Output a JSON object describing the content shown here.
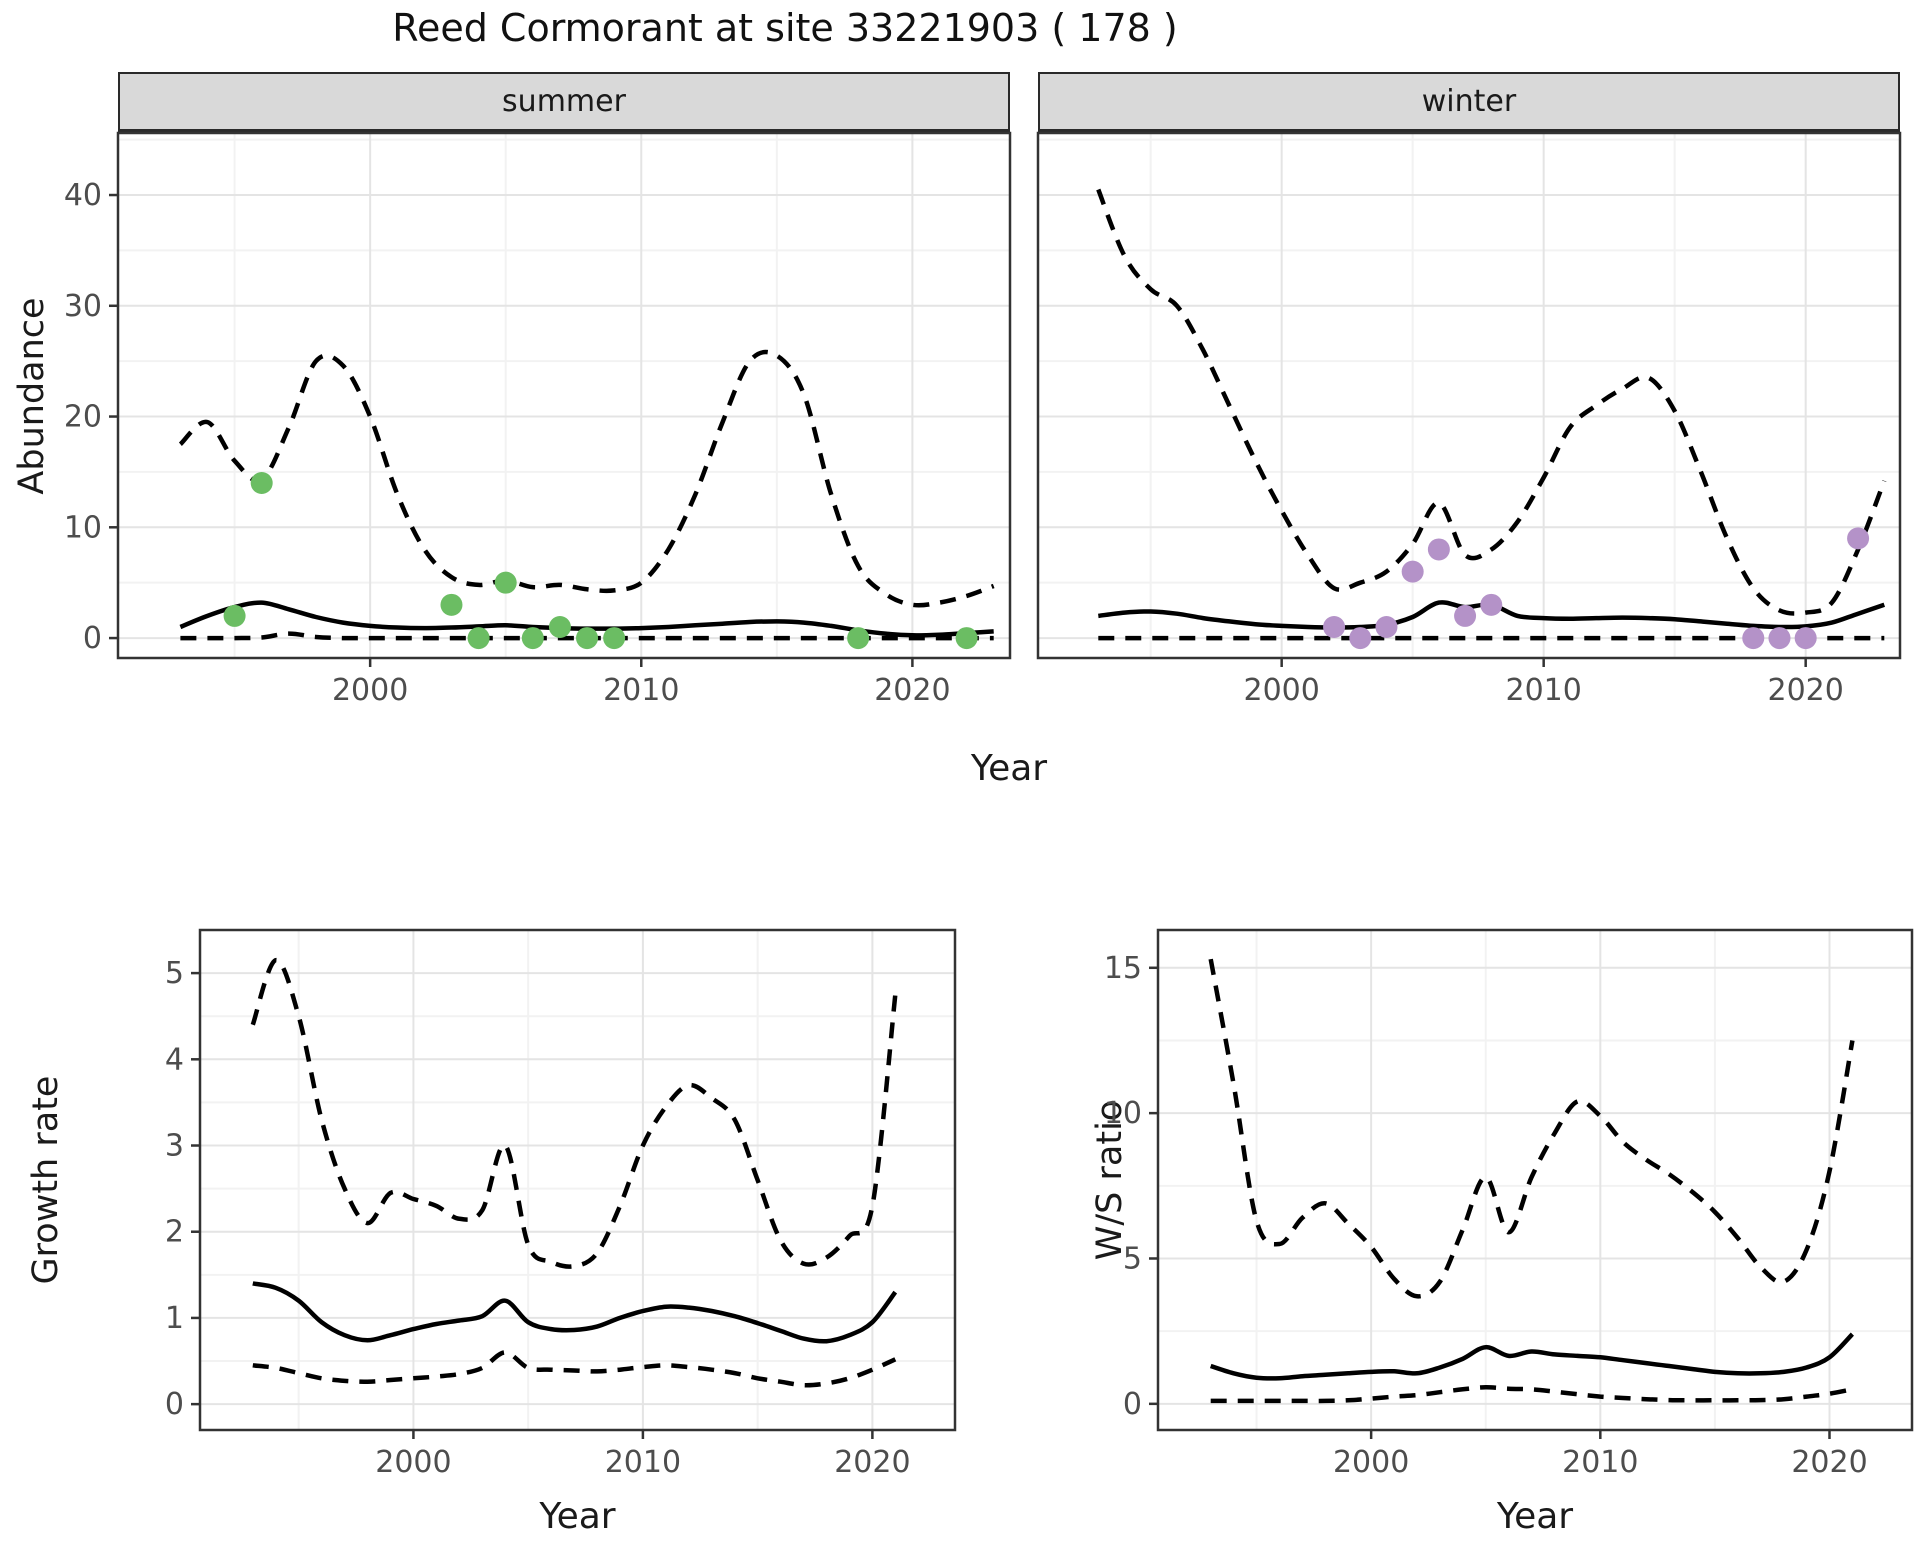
{
  "title": "Reed Cormorant at site 33221903 ( 178 )",
  "row1": {
    "facets": [
      "summer",
      "winter"
    ],
    "ylabel": "Abundance",
    "xlabel": "Year"
  },
  "row2": {
    "growth_ylabel": "Growth rate",
    "ws_ylabel": "W/S ratio",
    "xlabel": "Year"
  },
  "colors": {
    "summer_point": "#6bbd63",
    "winter_point": "#b492c8",
    "line": "#000000",
    "grid_major": "#e4e4e4",
    "grid_minor": "#f2f2f2",
    "panel_border": "#333333",
    "strip_bg": "#d9d9d9",
    "tick_text": "#4d4d4d"
  },
  "chart_data": [
    {
      "type": "line",
      "name": "abundance-summer",
      "title": "summer",
      "xlabel": "Year",
      "ylabel": "Abundance",
      "xlim": [
        1990.7,
        2023.6
      ],
      "ylim": [
        -1.8,
        45.6
      ],
      "x_ticks": [
        2000,
        2010,
        2020
      ],
      "x_minor": [
        1995,
        2005,
        2015
      ],
      "y_ticks": [
        0,
        10,
        20,
        30,
        40
      ],
      "y_minor": [
        5,
        15,
        25,
        35,
        45
      ],
      "x_start": 1993,
      "series": [
        {
          "name": "fit",
          "style": "solid",
          "values": [
            1.0,
            2.0,
            2.8,
            3.2,
            2.6,
            1.9,
            1.4,
            1.1,
            0.95,
            0.9,
            0.95,
            1.05,
            1.15,
            1.0,
            0.9,
            0.85,
            0.85,
            0.9,
            1.0,
            1.15,
            1.3,
            1.45,
            1.5,
            1.4,
            1.1,
            0.7,
            0.4,
            0.25,
            0.3,
            0.45,
            0.6
          ]
        },
        {
          "name": "upper_ci",
          "style": "dashed",
          "values": [
            17.5,
            19.5,
            16.0,
            14.3,
            19.0,
            25.0,
            24.6,
            20.0,
            13.0,
            8.0,
            5.5,
            4.8,
            5.2,
            4.6,
            4.8,
            4.4,
            4.3,
            5.0,
            8.0,
            13.0,
            19.5,
            25.0,
            25.5,
            22.0,
            13.0,
            6.5,
            4.0,
            3.0,
            3.2,
            3.8,
            4.7
          ]
        },
        {
          "name": "lower_ci",
          "style": "dashed",
          "values": [
            0,
            0,
            0,
            0.05,
            0.4,
            0.1,
            0,
            0,
            0,
            0,
            0,
            0,
            0,
            0,
            0,
            0,
            0,
            0,
            0,
            0,
            0,
            0,
            0,
            0,
            0,
            0,
            0,
            0,
            0,
            0,
            0
          ]
        }
      ],
      "points": {
        "color": "#6bbd63",
        "data": [
          [
            1995,
            2
          ],
          [
            1996,
            14
          ],
          [
            2003,
            3
          ],
          [
            2004,
            0
          ],
          [
            2005,
            5
          ],
          [
            2006,
            0
          ],
          [
            2007,
            1
          ],
          [
            2008,
            0
          ],
          [
            2009,
            0
          ],
          [
            2018,
            0
          ],
          [
            2022,
            0
          ]
        ]
      }
    },
    {
      "type": "line",
      "name": "abundance-winter",
      "title": "winter",
      "xlabel": "Year",
      "ylabel": "Abundance",
      "xlim": [
        1990.7,
        2023.6
      ],
      "ylim": [
        -1.8,
        45.6
      ],
      "x_ticks": [
        2000,
        2010,
        2020
      ],
      "x_minor": [
        1995,
        2005,
        2015
      ],
      "y_ticks": [
        0,
        10,
        20,
        30,
        40
      ],
      "y_minor": [
        5,
        15,
        25,
        35,
        45
      ],
      "x_start": 1993,
      "series": [
        {
          "name": "fit",
          "style": "solid",
          "values": [
            2.0,
            2.3,
            2.4,
            2.2,
            1.8,
            1.5,
            1.25,
            1.1,
            1.0,
            0.95,
            1.0,
            1.2,
            1.9,
            3.2,
            2.8,
            3.0,
            2.0,
            1.8,
            1.75,
            1.8,
            1.85,
            1.8,
            1.7,
            1.5,
            1.3,
            1.1,
            1.0,
            1.05,
            1.4,
            2.2,
            3.0
          ]
        },
        {
          "name": "upper_ci",
          "style": "dashed",
          "values": [
            40.5,
            34.5,
            31.5,
            30.0,
            26.0,
            21.0,
            16.0,
            11.5,
            7.5,
            4.5,
            5.0,
            6.0,
            8.5,
            12.2,
            7.5,
            8.0,
            10.5,
            14.5,
            19.0,
            21.0,
            22.5,
            23.5,
            20.5,
            15.0,
            9.0,
            4.5,
            2.5,
            2.3,
            3.2,
            8.0,
            14.2
          ]
        },
        {
          "name": "lower_ci",
          "style": "dashed",
          "values": [
            0,
            0,
            0,
            0,
            0,
            0,
            0,
            0,
            0,
            0,
            0,
            0,
            0,
            0,
            0,
            0,
            0,
            0,
            0,
            0,
            0,
            0,
            0,
            0,
            0,
            0,
            0,
            0,
            0,
            0,
            0
          ]
        }
      ],
      "points": {
        "color": "#b492c8",
        "data": [
          [
            2002,
            1
          ],
          [
            2003,
            0
          ],
          [
            2004,
            1
          ],
          [
            2005,
            6
          ],
          [
            2006,
            8
          ],
          [
            2007,
            2
          ],
          [
            2008,
            3
          ],
          [
            2018,
            0
          ],
          [
            2019,
            0
          ],
          [
            2020,
            0
          ],
          [
            2022,
            9
          ]
        ]
      }
    },
    {
      "type": "line",
      "name": "growth-rate",
      "title": "",
      "xlabel": "Year",
      "ylabel": "Growth rate",
      "xlim": [
        1990.7,
        2023.6
      ],
      "ylim": [
        -0.3,
        5.5
      ],
      "x_ticks": [
        2000,
        2010,
        2020
      ],
      "x_minor": [
        1995,
        2005,
        2015
      ],
      "y_ticks": [
        0,
        1,
        2,
        3,
        4,
        5
      ],
      "y_minor": [
        0.5,
        1.5,
        2.5,
        3.5,
        4.5
      ],
      "x_start": 1993,
      "series": [
        {
          "name": "fit",
          "style": "solid",
          "values": [
            1.4,
            1.35,
            1.2,
            0.95,
            0.8,
            0.74,
            0.8,
            0.87,
            0.93,
            0.97,
            1.02,
            1.2,
            0.95,
            0.87,
            0.86,
            0.9,
            1.0,
            1.08,
            1.13,
            1.12,
            1.08,
            1.02,
            0.94,
            0.85,
            0.76,
            0.73,
            0.8,
            0.95,
            1.3
          ]
        },
        {
          "name": "upper_ci",
          "style": "dashed",
          "values": [
            4.4,
            5.15,
            4.5,
            3.3,
            2.5,
            2.1,
            2.45,
            2.38,
            2.3,
            2.15,
            2.25,
            3.0,
            1.85,
            1.65,
            1.6,
            1.75,
            2.3,
            3.0,
            3.45,
            3.7,
            3.55,
            3.3,
            2.6,
            1.9,
            1.63,
            1.7,
            1.95,
            2.3,
            4.75
          ]
        },
        {
          "name": "lower_ci",
          "style": "dashed",
          "values": [
            0.45,
            0.42,
            0.36,
            0.3,
            0.27,
            0.26,
            0.28,
            0.3,
            0.32,
            0.35,
            0.42,
            0.6,
            0.42,
            0.4,
            0.39,
            0.38,
            0.4,
            0.43,
            0.45,
            0.43,
            0.4,
            0.36,
            0.3,
            0.26,
            0.22,
            0.24,
            0.3,
            0.4,
            0.52
          ]
        }
      ],
      "points": null
    },
    {
      "type": "line",
      "name": "ws-ratio",
      "title": "",
      "xlabel": "Year",
      "ylabel": "W/S ratio",
      "xlim": [
        1990.7,
        2023.6
      ],
      "ylim": [
        -0.9,
        16.3
      ],
      "x_ticks": [
        2000,
        2010,
        2020
      ],
      "x_minor": [
        1995,
        2005,
        2015
      ],
      "y_ticks": [
        0,
        5,
        10,
        15
      ],
      "y_minor": [
        2.5,
        7.5,
        12.5
      ],
      "x_start": 1993,
      "series": [
        {
          "name": "fit",
          "style": "solid",
          "values": [
            1.3,
            1.05,
            0.9,
            0.88,
            0.95,
            1.0,
            1.05,
            1.1,
            1.12,
            1.05,
            1.25,
            1.55,
            1.95,
            1.65,
            1.8,
            1.7,
            1.65,
            1.6,
            1.5,
            1.4,
            1.3,
            1.2,
            1.1,
            1.05,
            1.05,
            1.1,
            1.25,
            1.6,
            2.4
          ]
        },
        {
          "name": "upper_ci",
          "style": "dashed",
          "values": [
            15.3,
            11.0,
            6.3,
            5.5,
            6.4,
            6.9,
            6.2,
            5.4,
            4.3,
            3.7,
            4.2,
            6.0,
            7.8,
            5.9,
            7.8,
            9.3,
            10.4,
            9.9,
            9.0,
            8.4,
            7.9,
            7.3,
            6.6,
            5.7,
            4.7,
            4.2,
            5.3,
            8.0,
            12.5
          ]
        },
        {
          "name": "lower_ci",
          "style": "dashed",
          "values": [
            0.1,
            0.1,
            0.1,
            0.1,
            0.1,
            0.1,
            0.12,
            0.18,
            0.25,
            0.3,
            0.4,
            0.5,
            0.57,
            0.52,
            0.5,
            0.42,
            0.33,
            0.25,
            0.2,
            0.16,
            0.13,
            0.12,
            0.12,
            0.12,
            0.13,
            0.16,
            0.25,
            0.35,
            0.5
          ]
        }
      ],
      "points": null
    }
  ]
}
